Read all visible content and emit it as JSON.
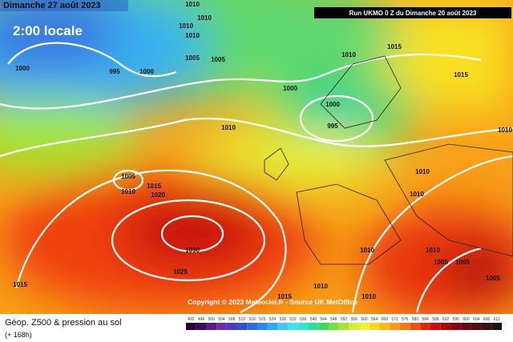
{
  "header": {
    "date": "Dimanche 27 août 2023",
    "time": "2:00 locale",
    "run": "Run UKMO 0 Z du Dimanche 20 août 2023"
  },
  "isobar_labels": [
    "1010",
    "1010",
    "1010",
    "1010",
    "1005",
    "1005",
    "1000",
    "995",
    "1000",
    "1010",
    "1015",
    "1015",
    "1000",
    "1000",
    "995",
    "1010",
    "1010",
    "1005",
    "1010",
    "1015",
    "1020",
    "1010",
    "1010",
    "1030",
    "1025",
    "1010",
    "1010",
    "1005",
    "1005",
    "1015",
    "1010",
    "1005",
    "1015",
    "1010"
  ],
  "copyright": "Copyright © 2023 Meteociel.fr - Source UK MetOffice",
  "footer": {
    "title": "Géop. Z500 & pression au sol",
    "lead": "(+ 168h)"
  },
  "legend": {
    "labels": [
      492,
      496,
      500,
      504,
      508,
      512,
      516,
      520,
      524,
      528,
      532,
      536,
      540,
      544,
      548,
      552,
      556,
      560,
      564,
      568,
      572,
      576,
      580,
      584,
      588,
      592,
      596,
      600,
      604,
      608,
      612
    ],
    "colors": [
      "#200030",
      "#3a0a5a",
      "#5a1a82",
      "#6a2ea8",
      "#4a3cc0",
      "#3050d0",
      "#2a6ae0",
      "#2a88f0",
      "#30a8f8",
      "#40c8f8",
      "#40e0f0",
      "#30e8c8",
      "#30e090",
      "#40d860",
      "#70e040",
      "#a0e830",
      "#d0f030",
      "#f0f030",
      "#f8d820",
      "#f8b818",
      "#f89818",
      "#f87818",
      "#f05010",
      "#e02808",
      "#c81008",
      "#a80808",
      "#880808",
      "#680810",
      "#501010",
      "#381010",
      "#201010"
    ]
  }
}
